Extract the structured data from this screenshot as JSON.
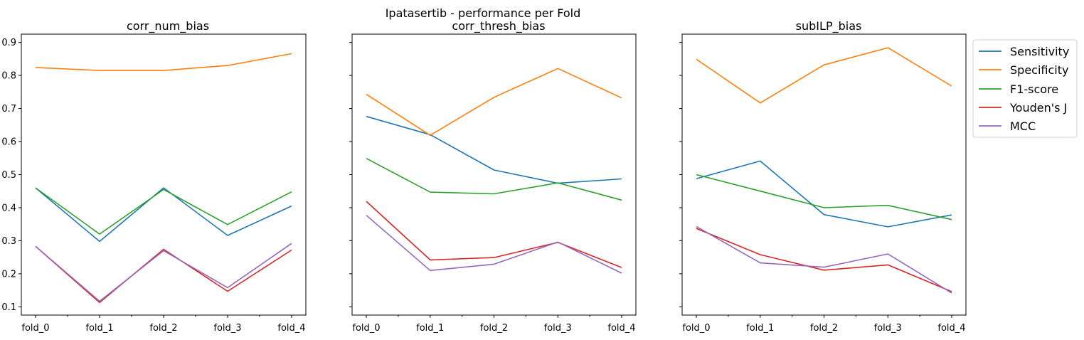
{
  "figure": {
    "suptitle": "Ipatasertib - performance per Fold"
  },
  "legend": {
    "placement": "outside-right-top",
    "entries": [
      {
        "label": "Sensitivity",
        "color": "#1f77b4"
      },
      {
        "label": "Specificity",
        "color": "#ff7f0e"
      },
      {
        "label": "F1-score",
        "color": "#2ca02c"
      },
      {
        "label": "Youden's J",
        "color": "#d62728"
      },
      {
        "label": "MCC",
        "color": "#9467bd"
      }
    ]
  },
  "chart_data": [
    {
      "type": "line",
      "title": "corr_num_bias",
      "categories": [
        "fold_0",
        "fold_1",
        "fold_2",
        "fold_3",
        "fold_4"
      ],
      "yticks": [
        "0.1",
        "0.2",
        "0.3",
        "0.4",
        "0.5",
        "0.6",
        "0.7",
        "0.8",
        "0.9"
      ],
      "ylim": [
        0.075,
        0.925
      ],
      "show_ytick_labels": true,
      "grid": false,
      "series": [
        {
          "name": "Sensitivity",
          "color": "#1f77b4",
          "values": [
            0.46,
            0.298,
            0.46,
            0.316,
            0.405
          ]
        },
        {
          "name": "Specificity",
          "color": "#ff7f0e",
          "values": [
            0.824,
            0.815,
            0.815,
            0.83,
            0.866
          ]
        },
        {
          "name": "F1-score",
          "color": "#2ca02c",
          "values": [
            0.46,
            0.32,
            0.455,
            0.349,
            0.448
          ]
        },
        {
          "name": "Youden's J",
          "color": "#d62728",
          "values": [
            0.283,
            0.113,
            0.274,
            0.147,
            0.272
          ]
        },
        {
          "name": "MCC",
          "color": "#9467bd",
          "values": [
            0.283,
            0.117,
            0.27,
            0.158,
            0.292
          ]
        }
      ]
    },
    {
      "type": "line",
      "title": "corr_thresh_bias",
      "categories": [
        "fold_0",
        "fold_1",
        "fold_2",
        "fold_3",
        "fold_4"
      ],
      "yticks": [
        "0.1",
        "0.2",
        "0.3",
        "0.4",
        "0.5",
        "0.6",
        "0.7",
        "0.8",
        "0.9"
      ],
      "ylim": [
        0.075,
        0.925
      ],
      "show_ytick_labels": false,
      "grid": false,
      "series": [
        {
          "name": "Sensitivity",
          "color": "#1f77b4",
          "values": [
            0.676,
            0.621,
            0.514,
            0.474,
            0.487
          ]
        },
        {
          "name": "Specificity",
          "color": "#ff7f0e",
          "values": [
            0.743,
            0.619,
            0.734,
            0.821,
            0.732
          ]
        },
        {
          "name": "F1-score",
          "color": "#2ca02c",
          "values": [
            0.549,
            0.447,
            0.442,
            0.475,
            0.423
          ]
        },
        {
          "name": "Youden's J",
          "color": "#d62728",
          "values": [
            0.419,
            0.242,
            0.249,
            0.295,
            0.219
          ]
        },
        {
          "name": "MCC",
          "color": "#9467bd",
          "values": [
            0.377,
            0.21,
            0.229,
            0.296,
            0.202
          ]
        }
      ]
    },
    {
      "type": "line",
      "title": "subILP_bias",
      "categories": [
        "fold_0",
        "fold_1",
        "fold_2",
        "fold_3",
        "fold_4"
      ],
      "yticks": [
        "0.1",
        "0.2",
        "0.3",
        "0.4",
        "0.5",
        "0.6",
        "0.7",
        "0.8",
        "0.9"
      ],
      "ylim": [
        0.075,
        0.925
      ],
      "show_ytick_labels": false,
      "grid": false,
      "series": [
        {
          "name": "Sensitivity",
          "color": "#1f77b4",
          "values": [
            0.488,
            0.541,
            0.379,
            0.342,
            0.378
          ]
        },
        {
          "name": "Specificity",
          "color": "#ff7f0e",
          "values": [
            0.849,
            0.717,
            0.832,
            0.884,
            0.768
          ]
        },
        {
          "name": "F1-score",
          "color": "#2ca02c",
          "values": [
            0.5,
            0.45,
            0.4,
            0.407,
            0.364
          ]
        },
        {
          "name": "Youden's J",
          "color": "#d62728",
          "values": [
            0.337,
            0.258,
            0.211,
            0.227,
            0.146
          ]
        },
        {
          "name": "MCC",
          "color": "#9467bd",
          "values": [
            0.343,
            0.233,
            0.22,
            0.26,
            0.142
          ]
        }
      ]
    }
  ]
}
